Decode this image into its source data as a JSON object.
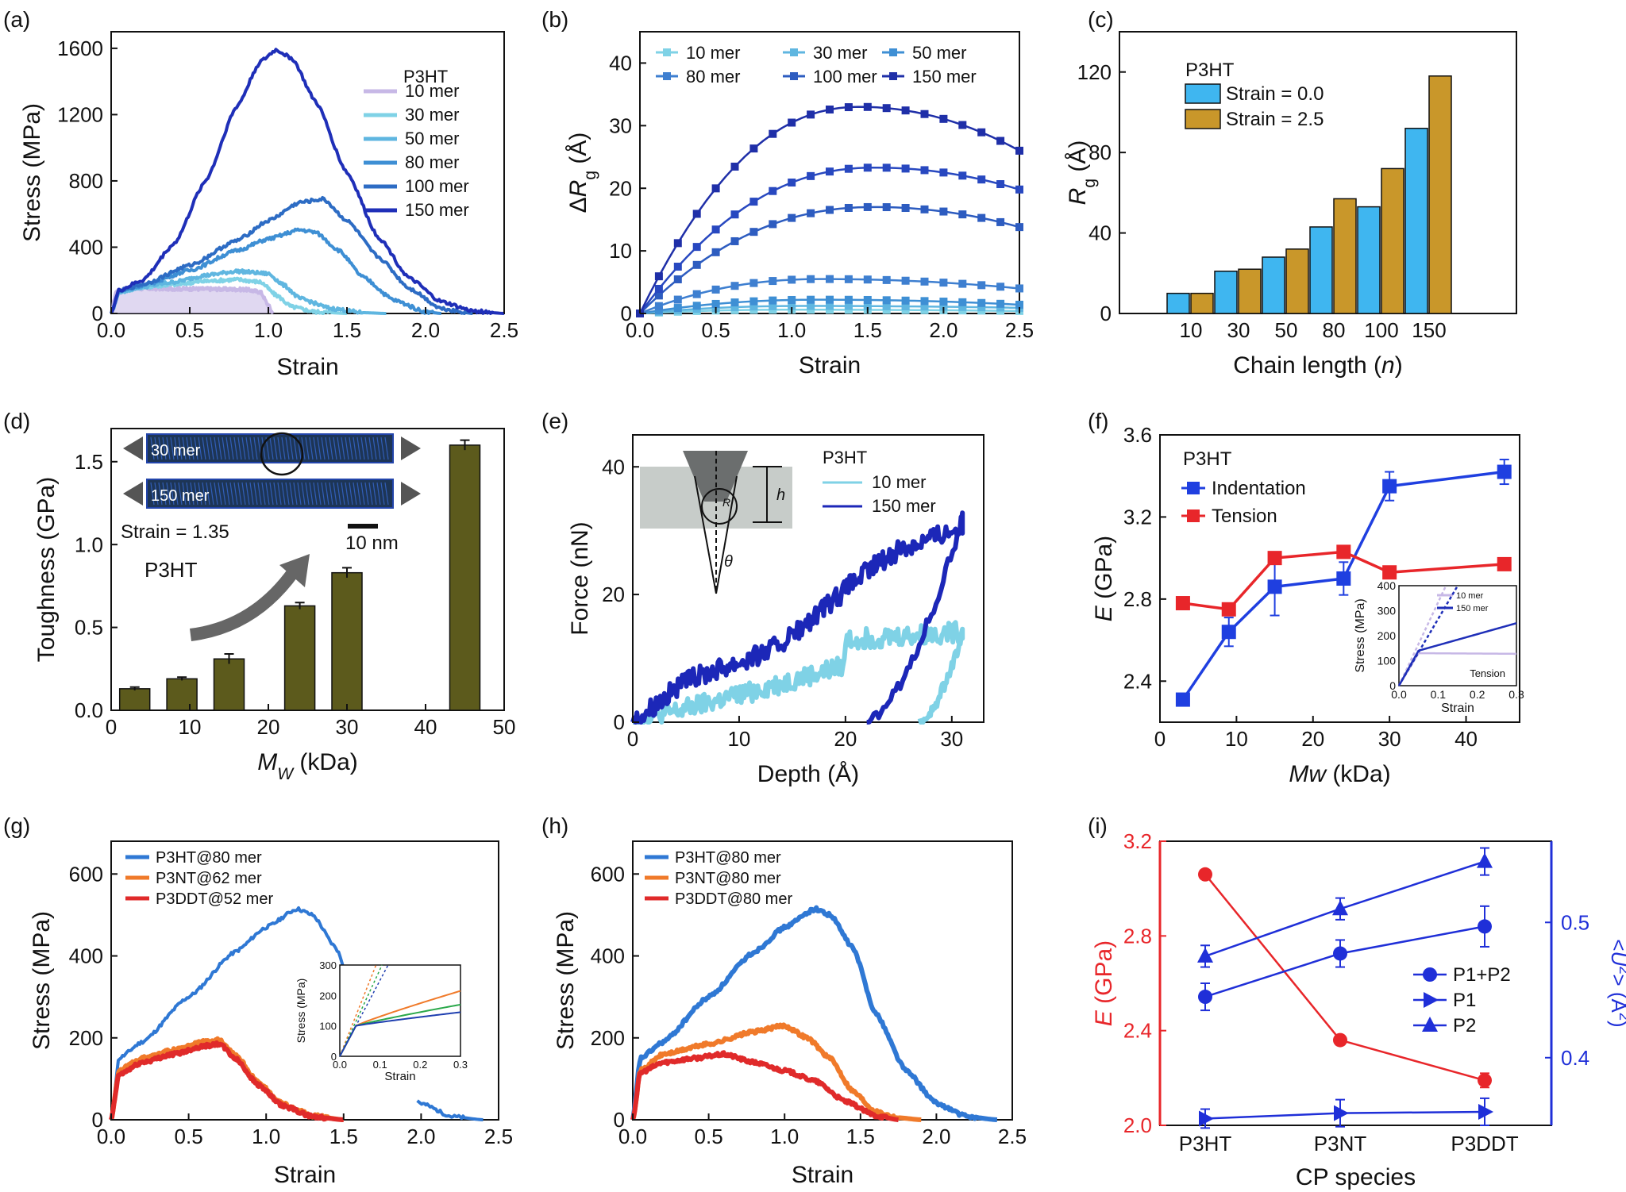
{
  "panels": [
    {
      "id": "a",
      "label": "(a)",
      "type": "line",
      "xlabel": "Strain",
      "ylabel": "Stress (MPa)",
      "xlim": [
        0,
        2.5
      ],
      "ylim": [
        0,
        1700
      ],
      "xticks": [
        0.0,
        0.5,
        1.0,
        1.5,
        2.0,
        2.5
      ],
      "xtick_labels": [
        "0.0",
        "0.5",
        "1.0",
        "1.5",
        "2.0",
        "2.5"
      ],
      "yticks": [
        0,
        400,
        800,
        1200,
        1600
      ],
      "ytick_labels": [
        "0",
        "400",
        "800",
        "1200",
        "1600"
      ],
      "legend_title": "P3HT",
      "series": [
        {
          "name": "10 mer",
          "color": "#c7b8e6",
          "fill": true,
          "x": [
            0,
            0.03,
            0.1,
            0.3,
            0.6,
            0.85,
            0.95,
            1.0,
            1.03
          ],
          "y": [
            0,
            130,
            150,
            150,
            148,
            145,
            130,
            50,
            0
          ]
        },
        {
          "name": "30 mer",
          "color": "#7fd2e6",
          "x": [
            0,
            0.05,
            0.2,
            0.4,
            0.6,
            0.8,
            0.95,
            1.05,
            1.15,
            1.3,
            1.5
          ],
          "y": [
            0,
            130,
            160,
            175,
            195,
            205,
            190,
            110,
            40,
            10,
            0
          ]
        },
        {
          "name": "50 mer",
          "color": "#5fb6e0",
          "x": [
            0,
            0.05,
            0.2,
            0.4,
            0.6,
            0.8,
            1.0,
            1.1,
            1.2,
            1.4,
            1.6,
            1.75
          ],
          "y": [
            0,
            130,
            160,
            190,
            230,
            255,
            240,
            170,
            90,
            30,
            5,
            0
          ]
        },
        {
          "name": "80 mer",
          "color": "#3e8fd4",
          "x": [
            0,
            0.05,
            0.2,
            0.5,
            0.8,
            1.0,
            1.2,
            1.3,
            1.45,
            1.6,
            1.8,
            2.0,
            2.1
          ],
          "y": [
            0,
            135,
            170,
            260,
            380,
            450,
            505,
            490,
            380,
            220,
            80,
            10,
            0
          ]
        },
        {
          "name": "100 mer",
          "color": "#2d6cc4",
          "x": [
            0,
            0.05,
            0.2,
            0.5,
            0.8,
            1.0,
            1.2,
            1.35,
            1.5,
            1.7,
            1.9,
            2.1,
            2.3
          ],
          "y": [
            0,
            135,
            175,
            290,
            440,
            560,
            670,
            690,
            560,
            340,
            150,
            30,
            0
          ]
        },
        {
          "name": "150 mer",
          "color": "#1f2fb8",
          "x": [
            0,
            0.05,
            0.2,
            0.4,
            0.6,
            0.8,
            0.95,
            1.05,
            1.15,
            1.3,
            1.5,
            1.7,
            1.9,
            2.1,
            2.3,
            2.5
          ],
          "y": [
            0,
            140,
            200,
            420,
            800,
            1250,
            1520,
            1590,
            1540,
            1280,
            850,
            460,
            210,
            70,
            15,
            0
          ]
        }
      ]
    },
    {
      "id": "b",
      "label": "(b)",
      "type": "line",
      "xlabel": "Strain",
      "ylabel": "ΔRg (Å)",
      "ylabel_parts": [
        "Δ",
        "R",
        "g",
        " (Å)"
      ],
      "xlim": [
        0,
        2.5
      ],
      "ylim": [
        0,
        45
      ],
      "xticks": [
        0.0,
        0.5,
        1.0,
        1.5,
        2.0,
        2.5
      ],
      "xtick_labels": [
        "0.0",
        "0.5",
        "1.0",
        "1.5",
        "2.0",
        "2.5"
      ],
      "yticks": [
        0,
        10,
        20,
        30,
        40
      ],
      "ytick_labels": [
        "0",
        "10",
        "20",
        "30",
        "40"
      ],
      "markers": true,
      "series": [
        {
          "name": "10 mer",
          "color": "#7fd2e6",
          "peak": 0.6,
          "tail": 0.4,
          "peakx": 1.0
        },
        {
          "name": "30 mer",
          "color": "#5fb6e0",
          "peak": 1.2,
          "tail": 0.9,
          "peakx": 1.1
        },
        {
          "name": "50 mer",
          "color": "#3e8fd4",
          "peak": 2.2,
          "tail": 1.4,
          "peakx": 1.2
        },
        {
          "name": "80 mer",
          "color": "#3e7fd0",
          "peak": 5.5,
          "tail": 4.0,
          "peakx": 1.2
        },
        {
          "name": "100 mer",
          "color": "#2d5cc0",
          "peak": 17.0,
          "tail": 13.8,
          "peakx": 1.55
        },
        {
          "name": "150 mer",
          "color": "#1f2fa8",
          "peak": 33.0,
          "tail": 26.0,
          "peakx": 1.45
        }
      ],
      "series_extra": [
        {
          "name": "100 mer (upper)",
          "peak": 23.3,
          "tail": 19.8,
          "peakx": 1.55
        }
      ]
    },
    {
      "id": "c",
      "label": "(c)",
      "type": "bar",
      "xlabel": "Chain length (n)",
      "xlabel_parts": [
        "Chain length (",
        "n",
        ")"
      ],
      "ylabel": "Rg (Å)",
      "ylabel_parts": [
        "R",
        "g",
        " (Å)"
      ],
      "ylim": [
        0,
        140
      ],
      "yticks": [
        0,
        40,
        80,
        120
      ],
      "ytick_labels": [
        "0",
        "40",
        "80",
        "120"
      ],
      "categories": [
        "10",
        "30",
        "50",
        "80",
        "100",
        "150"
      ],
      "legend_title": "P3HT",
      "series": [
        {
          "name": "Strain = 0.0",
          "color": "#3fb6f0",
          "values": [
            10,
            21,
            28,
            43,
            53,
            92
          ]
        },
        {
          "name": "Strain = 2.5",
          "color": "#c9972a",
          "values": [
            10,
            22,
            32,
            57,
            72,
            118
          ]
        }
      ]
    },
    {
      "id": "d",
      "label": "(d)",
      "type": "bar",
      "xlabel": "MW (kDa)",
      "xlabel_parts": [
        "M",
        "W",
        " (kDa)"
      ],
      "ylabel": "Toughness (GPa)",
      "xlim": [
        0,
        50
      ],
      "ylim": [
        0,
        1.7
      ],
      "xticks": [
        0,
        10,
        20,
        30,
        40,
        50
      ],
      "xtick_labels": [
        "0",
        "10",
        "20",
        "30",
        "40",
        "50"
      ],
      "yticks": [
        0.0,
        0.5,
        1.0,
        1.5
      ],
      "ytick_labels": [
        "0.0",
        "0.5",
        "1.0",
        "1.5"
      ],
      "bar_color": "#5c5a1c",
      "x": [
        3.0,
        9.0,
        15.0,
        24.0,
        30.0,
        45.0
      ],
      "values": [
        0.13,
        0.19,
        0.31,
        0.63,
        0.83,
        1.6
      ],
      "errors": [
        0.01,
        0.01,
        0.03,
        0.02,
        0.03,
        0.03
      ],
      "inset": {
        "chain1": "30 mer",
        "chain2": "150 mer",
        "strain_text": "Strain = 1.35",
        "scale_text": "10 nm",
        "polymer": "P3HT"
      }
    },
    {
      "id": "e",
      "label": "(e)",
      "type": "scatter",
      "xlabel": "Depth (Å)",
      "ylabel": "Force (nN)",
      "xlim": [
        0,
        33
      ],
      "ylim": [
        0,
        45
      ],
      "xticks": [
        0,
        10,
        20,
        30
      ],
      "xtick_labels": [
        "0",
        "10",
        "20",
        "30"
      ],
      "yticks": [
        0,
        20,
        40
      ],
      "ytick_labels": [
        "0",
        "20",
        "40"
      ],
      "legend_title": "P3HT",
      "inset_labels": {
        "height": "h",
        "radius": "R",
        "angle": "θ"
      },
      "series": [
        {
          "name": "10 mer",
          "color": "#7fd2e6",
          "load_end_x": 31,
          "load_end_y": 14,
          "unload_start_x": 27,
          "max_y": 18
        },
        {
          "name": "150 mer",
          "color": "#1c27b8",
          "load_end_x": 31,
          "load_end_y": 32,
          "unload_start_x": 22,
          "max_y": 35
        }
      ]
    },
    {
      "id": "f",
      "label": "(f)",
      "type": "line",
      "xlabel": "Mw (kDa)",
      "ylabel": "E (GPa)",
      "xlim": [
        0,
        47
      ],
      "ylim": [
        2.2,
        3.6
      ],
      "xticks": [
        0,
        10,
        20,
        30,
        40
      ],
      "xtick_labels": [
        "0",
        "10",
        "20",
        "30",
        "40"
      ],
      "yticks": [
        2.4,
        2.8,
        3.2,
        3.6
      ],
      "ytick_labels": [
        "2.4",
        "2.8",
        "3.2",
        "3.6"
      ],
      "legend_title": "P3HT",
      "series": [
        {
          "name": "Indentation",
          "color": "#1f3fe0",
          "x": [
            3,
            9,
            15,
            24,
            30,
            45
          ],
          "y": [
            2.31,
            2.64,
            2.86,
            2.9,
            3.35,
            3.42
          ],
          "err": [
            0,
            0.07,
            0.14,
            0.08,
            0.07,
            0.06
          ]
        },
        {
          "name": "Tension",
          "color": "#e8262a",
          "x": [
            3,
            9,
            15,
            24,
            30,
            45
          ],
          "y": [
            2.78,
            2.75,
            3.0,
            3.03,
            2.93,
            2.97
          ],
          "err": [
            0,
            0,
            0,
            0,
            0,
            0
          ]
        }
      ],
      "inset": {
        "xlabel": "Strain",
        "ylabel": "Stress (MPa)",
        "xlim": [
          0,
          0.3
        ],
        "ylim": [
          0,
          400
        ],
        "xticks": [
          0.0,
          0.1,
          0.2,
          0.3
        ],
        "xtick_labels": [
          "0.0",
          "0.1",
          "0.2",
          "0.3"
        ],
        "yticks": [
          0,
          100,
          200,
          300,
          400
        ],
        "ytick_labels": [
          "0",
          "100",
          "200",
          "300",
          "400"
        ],
        "note": "Tension",
        "series": [
          {
            "name": "10 mer",
            "color": "#c7b8e6"
          },
          {
            "name": "150 mer",
            "color": "#1f2fb8"
          }
        ]
      }
    },
    {
      "id": "g",
      "label": "(g)",
      "type": "line",
      "xlabel": "Strain",
      "ylabel": "Stress (MPa)",
      "xlim": [
        0,
        2.5
      ],
      "ylim": [
        0,
        680
      ],
      "xticks": [
        0.0,
        0.5,
        1.0,
        1.5,
        2.0,
        2.5
      ],
      "xtick_labels": [
        "0.0",
        "0.5",
        "1.0",
        "1.5",
        "2.0",
        "2.5"
      ],
      "yticks": [
        0,
        200,
        400,
        600
      ],
      "ytick_labels": [
        "0",
        "200",
        "400",
        "600"
      ],
      "series": [
        {
          "name": "P3HT@80 mer",
          "color": "#2f78d4",
          "x": [
            0,
            0.05,
            0.2,
            0.5,
            0.8,
            1.0,
            1.2,
            1.3,
            1.45,
            1.6,
            1.8,
            2.0,
            2.2,
            2.4
          ],
          "y": [
            0,
            150,
            190,
            300,
            410,
            470,
            515,
            500,
            420,
            260,
            120,
            40,
            8,
            0
          ]
        },
        {
          "name": "P3NT@62 mer",
          "color": "#f07a2a",
          "x": [
            0,
            0.05,
            0.2,
            0.4,
            0.6,
            0.7,
            0.8,
            0.95,
            1.1,
            1.3,
            1.5
          ],
          "y": [
            0,
            120,
            150,
            170,
            190,
            195,
            160,
            90,
            40,
            10,
            0
          ]
        },
        {
          "name": "P3DDT@52 mer",
          "color": "#e02a2a",
          "x": [
            0,
            0.05,
            0.2,
            0.4,
            0.6,
            0.7,
            0.8,
            0.95,
            1.1,
            1.3,
            1.5
          ],
          "y": [
            0,
            110,
            140,
            160,
            180,
            185,
            150,
            85,
            35,
            8,
            0
          ]
        }
      ],
      "inset": {
        "xlabel": "Strain",
        "ylabel": "Stress (MPa)",
        "xlim": [
          0,
          0.3
        ],
        "ylim": [
          0,
          300
        ],
        "xticks": [
          0.0,
          0.1,
          0.2,
          0.3
        ],
        "xtick_labels": [
          "0.0",
          "0.1",
          "0.2",
          "0.3"
        ],
        "yticks": [
          0,
          100,
          200,
          300
        ],
        "ytick_labels": [
          "0",
          "100",
          "200",
          "300"
        ],
        "series": [
          {
            "name": "P3NT",
            "color": "#f07a2a",
            "end": 215
          },
          {
            "name": "P3DDT",
            "color": "#2aa84a",
            "end": 170
          },
          {
            "name": "P3HT",
            "color": "#1f3fb0",
            "end": 145
          }
        ]
      }
    },
    {
      "id": "h",
      "label": "(h)",
      "type": "line",
      "xlabel": "Strain",
      "ylabel": "Stress (MPa)",
      "xlim": [
        0,
        2.5
      ],
      "ylim": [
        0,
        680
      ],
      "xticks": [
        0.0,
        0.5,
        1.0,
        1.5,
        2.0,
        2.5
      ],
      "xtick_labels": [
        "0.0",
        "0.5",
        "1.0",
        "1.5",
        "2.0",
        "2.5"
      ],
      "yticks": [
        0,
        200,
        400,
        600
      ],
      "ytick_labels": [
        "0",
        "200",
        "400",
        "600"
      ],
      "series": [
        {
          "name": "P3HT@80 mer",
          "color": "#2f78d4",
          "x": [
            0,
            0.05,
            0.2,
            0.5,
            0.8,
            1.0,
            1.2,
            1.3,
            1.45,
            1.6,
            1.8,
            2.0,
            2.2,
            2.4
          ],
          "y": [
            0,
            150,
            190,
            300,
            410,
            470,
            515,
            500,
            420,
            260,
            120,
            40,
            8,
            0
          ]
        },
        {
          "name": "P3NT@80 mer",
          "color": "#f07a2a",
          "x": [
            0,
            0.05,
            0.2,
            0.5,
            0.8,
            1.0,
            1.15,
            1.3,
            1.45,
            1.6,
            1.75,
            1.9
          ],
          "y": [
            0,
            120,
            160,
            185,
            215,
            230,
            200,
            150,
            70,
            20,
            5,
            0
          ]
        },
        {
          "name": "P3DDT@80 mer",
          "color": "#e02a2a",
          "x": [
            0,
            0.05,
            0.2,
            0.4,
            0.6,
            0.8,
            1.0,
            1.2,
            1.4,
            1.6,
            1.75
          ],
          "y": [
            0,
            115,
            140,
            150,
            160,
            140,
            120,
            95,
            45,
            10,
            0
          ]
        }
      ]
    },
    {
      "id": "i",
      "label": "(i)",
      "type": "line",
      "xlabel": "CP species",
      "ylabel": "E (GPa)",
      "ylabel_right": "<U2> (Å2)",
      "ylabel_right_parts": [
        "<",
        "U",
        "2",
        "> (Å",
        "2",
        ")"
      ],
      "categories": [
        "P3HT",
        "P3NT",
        "P3DDT"
      ],
      "ylim": [
        2.0,
        3.2
      ],
      "yticks": [
        2.0,
        2.4,
        2.8,
        3.2
      ],
      "ytick_labels": [
        "2.0",
        "2.4",
        "2.8",
        "3.2"
      ],
      "ylim_right": [
        0.35,
        0.56
      ],
      "yticks_right": [
        0.4,
        0.5
      ],
      "ytick_labels_right": [
        "0.4",
        "0.5"
      ],
      "left_color": "#e8262a",
      "right_color": "#1f2fd8",
      "series": [
        {
          "name": "E",
          "axis": "left",
          "color": "#e8262a",
          "marker": "circle",
          "values": [
            3.06,
            2.36,
            2.19
          ],
          "err": [
            0,
            0,
            0.03
          ]
        },
        {
          "name": "P1+P2",
          "axis": "right",
          "color": "#1f2fd8",
          "marker": "circle",
          "values": [
            0.445,
            0.477,
            0.497
          ],
          "err": [
            0.01,
            0.01,
            0.015
          ]
        },
        {
          "name": "P1",
          "axis": "right",
          "color": "#1f2fd8",
          "marker": "triangle-right",
          "values": [
            0.355,
            0.359,
            0.36
          ],
          "err": [
            0.007,
            0.01,
            0.01
          ]
        },
        {
          "name": "P2",
          "axis": "right",
          "color": "#1f2fd8",
          "marker": "triangle-up",
          "values": [
            0.475,
            0.51,
            0.545
          ],
          "err": [
            0.008,
            0.008,
            0.01
          ]
        }
      ]
    }
  ]
}
